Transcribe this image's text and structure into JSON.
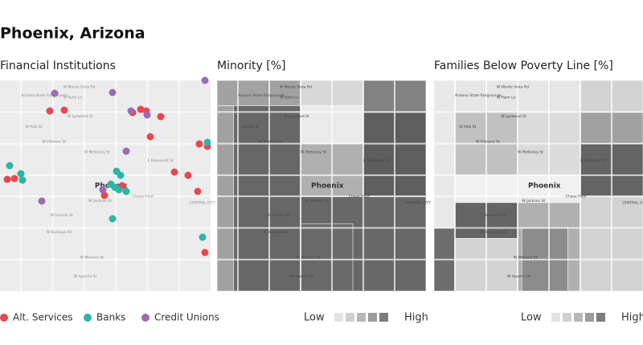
{
  "header": {
    "title": "Phoenix, Arizona"
  },
  "panels": [
    {
      "title": "Financial Institutions"
    },
    {
      "title": "Minority [%]"
    },
    {
      "title": "Families Below Poverty Line [%]"
    }
  ],
  "map_labels": [
    "Phoenix",
    "Arizona State Fairgrounds",
    "W Monte Vista Rd",
    "W Palm Ln",
    "W Lynwood St",
    "W McKinley St",
    "W Fillmore St",
    "W Polk St",
    "W Jackson St",
    "Chase Field",
    "W Lincoln St",
    "W Buckeye Rd",
    "W Apache St",
    "W Mohave St",
    "E Roosevelt St",
    "CENTRAL CITY"
  ],
  "legend": {
    "institutions": [
      "Alt. Services",
      "Banks",
      "Credit Unions"
    ],
    "low": "Low",
    "high": "High"
  }
}
